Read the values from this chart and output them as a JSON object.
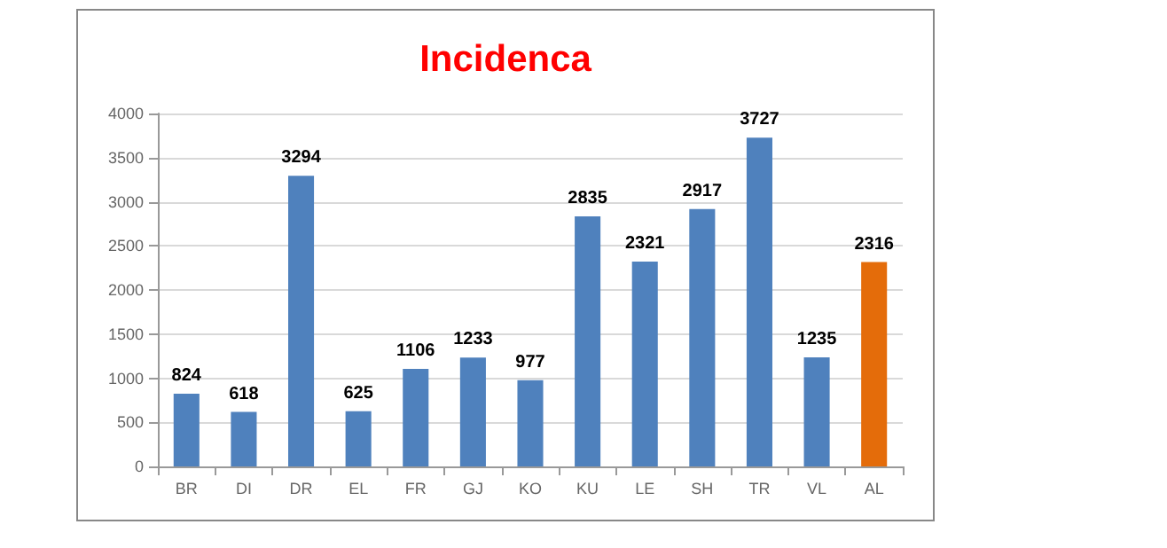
{
  "chart_data": {
    "type": "bar",
    "title": "Incidenca",
    "categories": [
      "BR",
      "DI",
      "DR",
      "EL",
      "FR",
      "GJ",
      "KO",
      "KU",
      "LE",
      "SH",
      "TR",
      "VL",
      "AL"
    ],
    "values": [
      824,
      618,
      3294,
      625,
      1106,
      1233,
      977,
      2835,
      2321,
      2917,
      3727,
      1235,
      2316
    ],
    "colors": [
      "#4f81bd",
      "#4f81bd",
      "#4f81bd",
      "#4f81bd",
      "#4f81bd",
      "#4f81bd",
      "#4f81bd",
      "#4f81bd",
      "#4f81bd",
      "#4f81bd",
      "#4f81bd",
      "#4f81bd",
      "#e46c0a"
    ],
    "ylim": [
      0,
      4000
    ],
    "yticks": [
      0,
      500,
      1000,
      1500,
      2000,
      2500,
      3000,
      3500,
      4000
    ],
    "grid": "y",
    "data_labels": true
  }
}
